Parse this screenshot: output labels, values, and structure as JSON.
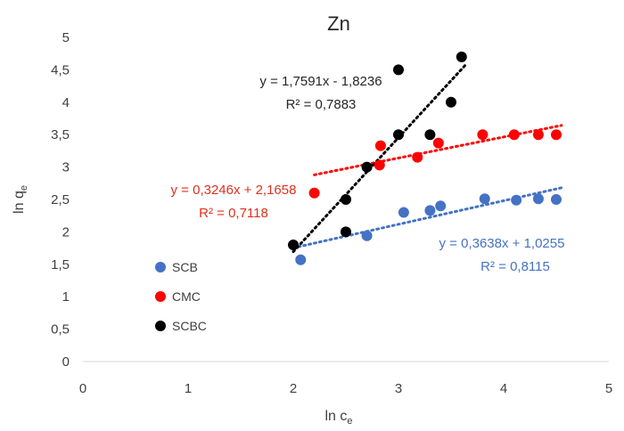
{
  "chart_data": {
    "type": "scatter",
    "title": "Zn",
    "xlabel": "ln c",
    "xlabel_sub": "e",
    "ylabel": "ln q",
    "ylabel_sub": "e",
    "xlim": [
      0,
      5
    ],
    "ylim": [
      0,
      5
    ],
    "x_ticks": [
      "0",
      "1",
      "2",
      "3",
      "4",
      "5"
    ],
    "y_ticks": [
      "0",
      "0,5",
      "1",
      "1,5",
      "2",
      "2,5",
      "3",
      "3,5",
      "4",
      "4,5",
      "5"
    ],
    "grid": false,
    "legend_position": "left",
    "series": [
      {
        "name": "SCB",
        "color": "#4472C4",
        "points": [
          [
            2.07,
            1.57
          ],
          [
            2.7,
            1.94
          ],
          [
            3.05,
            2.3
          ],
          [
            3.3,
            2.33
          ],
          [
            3.4,
            2.4
          ],
          [
            3.82,
            2.51
          ],
          [
            4.12,
            2.49
          ],
          [
            4.33,
            2.51
          ],
          [
            4.5,
            2.5
          ]
        ],
        "trendline": {
          "slope": 0.3638,
          "intercept": 1.0255,
          "x_range": [
            2.0,
            4.55
          ]
        },
        "equation": "y = 0,3638x + 1,0255",
        "r2": "R² = 0,8115"
      },
      {
        "name": "CMC",
        "color": "#FF0000",
        "points": [
          [
            2.2,
            2.6
          ],
          [
            2.82,
            3.03
          ],
          [
            2.83,
            3.33
          ],
          [
            3.18,
            3.15
          ],
          [
            3.38,
            3.37
          ],
          [
            3.8,
            3.5
          ],
          [
            4.1,
            3.5
          ],
          [
            4.33,
            3.5
          ],
          [
            4.5,
            3.5
          ]
        ],
        "trendline": {
          "slope": 0.3246,
          "intercept": 2.1658,
          "x_range": [
            2.2,
            4.55
          ]
        },
        "equation": "y = 0,3246x + 2,1658",
        "r2": "R² = 0,7118"
      },
      {
        "name": "SCBC",
        "color": "#000000",
        "points": [
          [
            2.0,
            1.8
          ],
          [
            2.5,
            2.0
          ],
          [
            2.5,
            2.5
          ],
          [
            2.7,
            3.0
          ],
          [
            3.0,
            3.5
          ],
          [
            3.0,
            4.5
          ],
          [
            3.3,
            3.5
          ],
          [
            3.5,
            4.0
          ],
          [
            3.6,
            4.7
          ]
        ],
        "trendline": {
          "slope": 1.7591,
          "intercept": -1.8236,
          "x_range": [
            2.0,
            3.65
          ]
        },
        "equation": "y = 1,7591x - 1,8236",
        "r2": "R² = 0,7883"
      }
    ]
  }
}
